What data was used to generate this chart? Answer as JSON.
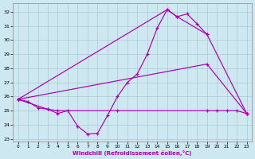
{
  "background_color": "#cde8f0",
  "grid_color": "#b0c8d8",
  "line_color": "#aa00aa",
  "xlabel": "Windchill (Refroidissement éolien,°C)",
  "ylim": [
    22.8,
    32.6
  ],
  "xlim": [
    -0.5,
    23.5
  ],
  "yticks": [
    23,
    24,
    25,
    26,
    27,
    28,
    29,
    30,
    31,
    32
  ],
  "xticks": [
    0,
    1,
    2,
    3,
    4,
    5,
    6,
    7,
    8,
    9,
    10,
    11,
    12,
    13,
    14,
    15,
    16,
    17,
    18,
    19,
    20,
    21,
    22,
    23
  ],
  "line1_x": [
    0,
    1,
    2,
    3,
    4,
    5,
    6,
    7,
    8,
    9,
    10,
    11,
    12,
    13,
    14,
    15,
    16,
    17,
    18,
    19
  ],
  "line1_y": [
    25.8,
    25.65,
    25.2,
    25.1,
    24.8,
    25.0,
    23.9,
    23.35,
    23.4,
    24.65,
    26.0,
    27.0,
    27.6,
    29.0,
    30.85,
    32.15,
    31.65,
    31.85,
    31.15,
    30.4
  ],
  "line2_x": [
    0,
    15,
    16,
    19,
    23
  ],
  "line2_y": [
    25.8,
    32.15,
    31.65,
    30.4,
    24.8
  ],
  "line3_x": [
    0,
    19,
    23
  ],
  "line3_y": [
    25.8,
    28.3,
    24.8
  ],
  "line4_x": [
    0,
    3,
    4,
    10,
    19,
    20,
    21,
    22,
    23
  ],
  "line4_y": [
    25.8,
    25.1,
    25.0,
    25.0,
    25.0,
    25.0,
    25.0,
    25.0,
    24.8
  ]
}
